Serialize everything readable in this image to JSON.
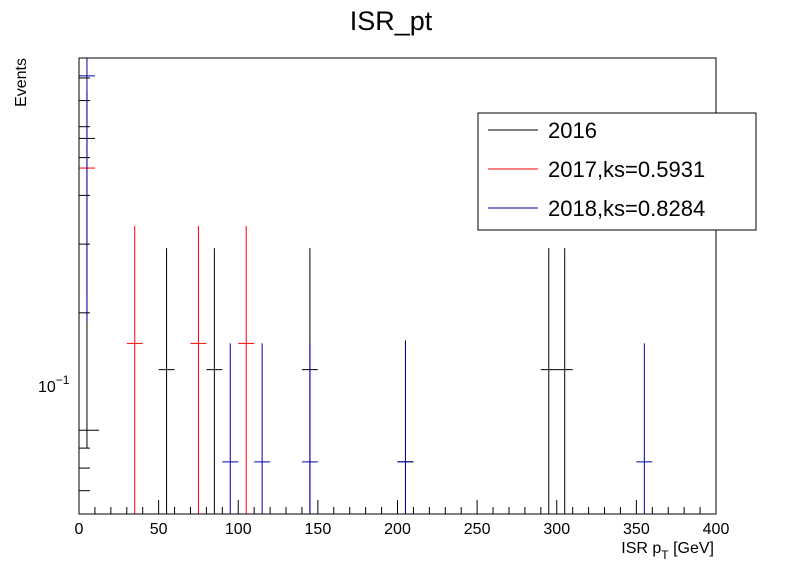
{
  "chart_data": {
    "type": "scatter",
    "title": "ISR_pt",
    "xlabel": "ISR p",
    "xlabel_sub": "T",
    "xlabel_unit": " [GeV]",
    "ylabel": "Events",
    "xlim": [
      0,
      400
    ],
    "ylim": [
      0.061,
      0.9
    ],
    "yscale": "log",
    "x_ticks": [
      0,
      50,
      100,
      150,
      200,
      250,
      300,
      350,
      400
    ],
    "x_tick_labels": [
      "0",
      "50",
      "100",
      "150",
      "200",
      "250",
      "300",
      "350",
      "400"
    ],
    "y_tick_label": {
      "base": "10",
      "exp": "−1",
      "value": 0.1
    },
    "bin_width": 10,
    "legend": {
      "position": "top-right"
    },
    "series": [
      {
        "name": "2016",
        "color": "#000000",
        "points": [
          {
            "x": 5,
            "y": 0.56,
            "err_lo": 0.47,
            "err_hi": 0.18
          },
          {
            "x": 55,
            "y": 0.143,
            "err_lo": 0.143,
            "err_hi": 0.15
          },
          {
            "x": 85,
            "y": 0.143,
            "err_lo": 0.143,
            "err_hi": 0.15
          },
          {
            "x": 145,
            "y": 0.143,
            "err_lo": 0.143,
            "err_hi": 0.15
          },
          {
            "x": 205,
            "y": 0.083,
            "err_lo": 0.083,
            "err_hi": 0.087
          },
          {
            "x": 295,
            "y": 0.143,
            "err_lo": 0.143,
            "err_hi": 0.15
          },
          {
            "x": 305,
            "y": 0.143,
            "err_lo": 0.143,
            "err_hi": 0.15
          }
        ]
      },
      {
        "name": "2017,ks=0.5931",
        "color": "#ff0000",
        "points": [
          {
            "x": 5,
            "y": 0.47,
            "err_lo": 0.25,
            "err_hi": 0.24
          },
          {
            "x": 35,
            "y": 0.167,
            "err_lo": 0.167,
            "err_hi": 0.167
          },
          {
            "x": 75,
            "y": 0.167,
            "err_lo": 0.167,
            "err_hi": 0.167
          },
          {
            "x": 105,
            "y": 0.167,
            "err_lo": 0.167,
            "err_hi": 0.167
          }
        ]
      },
      {
        "name": "2018,ks=0.8284",
        "color": "#0000aa",
        "points": [
          {
            "x": 5,
            "y": 0.81,
            "err_lo": 0.62,
            "err_hi": 0.3
          },
          {
            "x": 95,
            "y": 0.083,
            "err_lo": 0.083,
            "err_hi": 0.084
          },
          {
            "x": 115,
            "y": 0.083,
            "err_lo": 0.083,
            "err_hi": 0.084
          },
          {
            "x": 145,
            "y": 0.083,
            "err_lo": 0.083,
            "err_hi": 0.084
          },
          {
            "x": 205,
            "y": 0.083,
            "err_lo": 0.083,
            "err_hi": 0.084
          },
          {
            "x": 355,
            "y": 0.083,
            "err_lo": 0.083,
            "err_hi": 0.084
          }
        ]
      }
    ]
  }
}
